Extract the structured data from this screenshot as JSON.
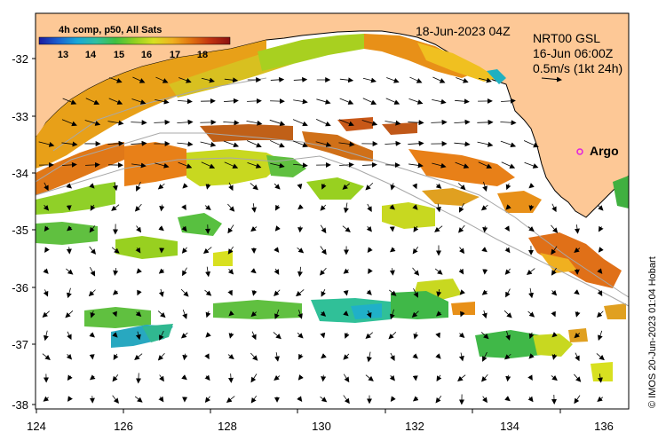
{
  "legend": {
    "title": "4h comp, p50, All Sats",
    "ticks": [
      "13",
      "14",
      "15",
      "16",
      "17",
      "18"
    ],
    "colors": [
      "#1a1aa0",
      "#1a60d0",
      "#18a8d8",
      "#30c0a0",
      "#40c040",
      "#90d020",
      "#d8e020",
      "#f0b020",
      "#e07010",
      "#c03010",
      "#8b1010"
    ]
  },
  "timestamp": "18-Jun-2023 04Z",
  "current_info": {
    "line1": "NRT00 GSL",
    "line2": "16-Jun 06:00Z",
    "line3": "0.5m/s (1kt 24h)"
  },
  "argo_label": "Argo",
  "credit": "© IMOS 20-Jun-2023 01:04 Hobart",
  "axes": {
    "x_ticks": [
      "124",
      "126",
      "128",
      "130",
      "132",
      "134",
      "136"
    ],
    "y_ticks": [
      "-32",
      "-33",
      "-34",
      "-35",
      "-36",
      "-37",
      "-38"
    ]
  },
  "colors": {
    "land": "#fdc896",
    "sea": "#ffffff",
    "coast": "#000000",
    "bathy": "#a8a8a8",
    "argo": "#e020e0"
  }
}
